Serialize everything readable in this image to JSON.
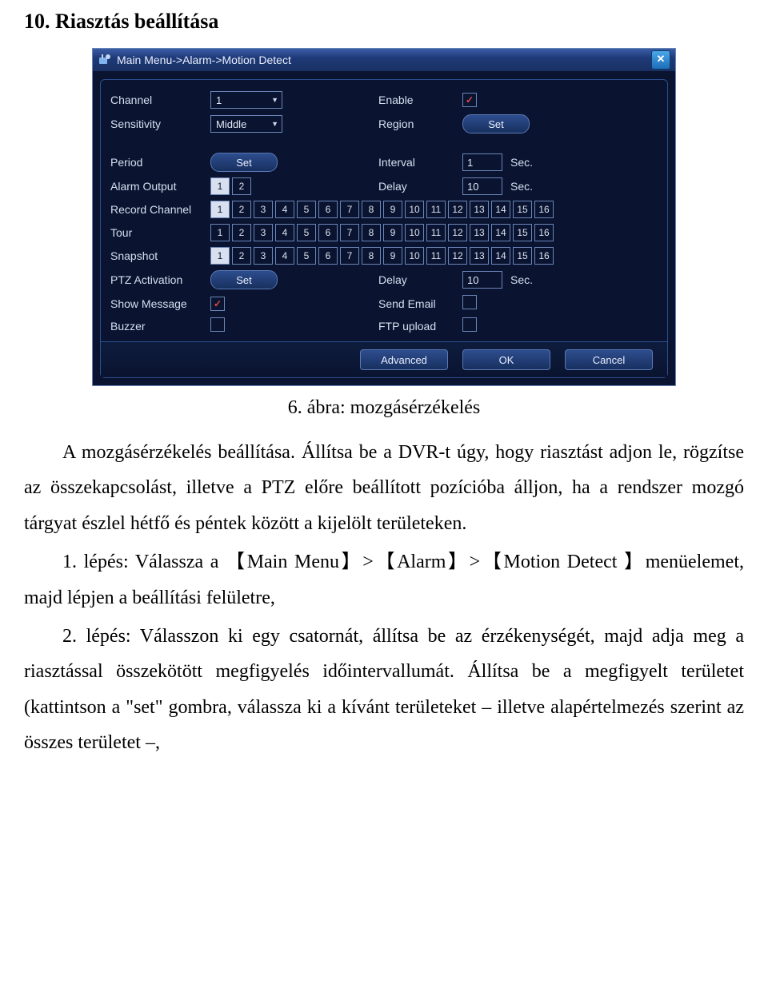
{
  "heading": "10. Riasztás beállítása",
  "caption": "6. ábra: mozgásérzékelés",
  "text": {
    "p1": "A mozgásérzékelés beállítása. Állítsa be a DVR-t úgy, hogy riasztást adjon le, rögzítse az összekapcsolást, illetve a PTZ előre beállított pozícióba álljon, ha a rendszer mozgó tárgyat észlel hétfő és péntek között a kijelölt területeken.",
    "p2": "1. lépés: Válassza a 【Main Menu】>【Alarm】>【Motion Detect 】menüelemet, majd lépjen a beállítási felületre,",
    "p3": "2. lépés: Válasszon ki egy csatornát, állítsa be az érzékenységét, majd adja meg a riasztással összekötött megfigyelés időintervallumát. Állítsa be a megfigyelt területet (kattintson a \"set\" gombra, válassza ki a kívánt területeket – illetve alapértelmezés szerint az összes területet –,"
  },
  "dialog": {
    "title": "Main Menu->Alarm->Motion Detect",
    "labels": {
      "channel": "Channel",
      "enable": "Enable",
      "sensitivity": "Sensitivity",
      "region": "Region",
      "period": "Period",
      "interval": "Interval",
      "alarm_output": "Alarm Output",
      "delay": "Delay",
      "record_channel": "Record Channel",
      "tour": "Tour",
      "snapshot": "Snapshot",
      "ptz_activation": "PTZ Activation",
      "show_message": "Show Message",
      "send_email": "Send Email",
      "buzzer": "Buzzer",
      "ftp_upload": "FTP upload"
    },
    "values": {
      "channel": "1",
      "sensitivity": "Middle",
      "interval": "1",
      "delay1": "10",
      "ptz_delay": "10",
      "sec": "Sec."
    },
    "set_label": "Set",
    "enable_checked": true,
    "show_message_checked": true,
    "send_email_checked": false,
    "buzzer_checked": false,
    "ftp_checked": false,
    "alarm_output_cells": [
      {
        "n": "1",
        "sel": true
      },
      {
        "n": "2",
        "sel": false
      }
    ],
    "channels16": [
      "1",
      "2",
      "3",
      "4",
      "5",
      "6",
      "7",
      "8",
      "9",
      "10",
      "11",
      "12",
      "13",
      "14",
      "15",
      "16"
    ],
    "footer": {
      "advanced": "Advanced",
      "ok": "OK",
      "cancel": "Cancel"
    }
  }
}
